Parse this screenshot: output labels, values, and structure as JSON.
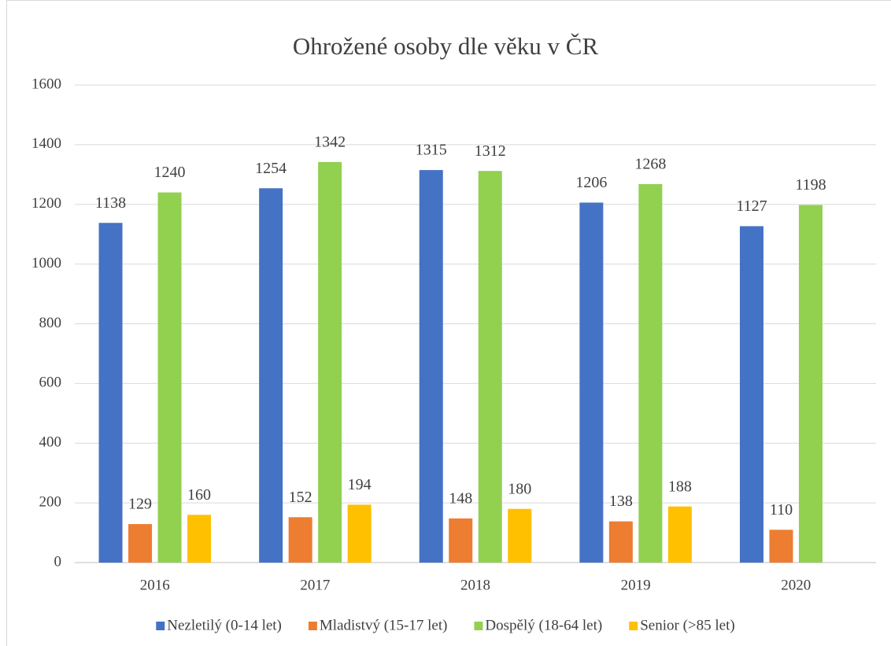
{
  "chart_data": {
    "type": "bar",
    "title": "Ohrožené osoby dle věku v ČR",
    "categories": [
      "2016",
      "2017",
      "2018",
      "2019",
      "2020"
    ],
    "series": [
      {
        "name": "Nezletilý (0-14 let)",
        "color": "#4472c4",
        "values": [
          1138,
          1254,
          1315,
          1206,
          1127
        ]
      },
      {
        "name": "Mladistvý (15-17 let)",
        "color": "#ed7d31",
        "values": [
          129,
          152,
          148,
          138,
          110
        ]
      },
      {
        "name": "Dospělý (18-64 let)",
        "color": "#92d050",
        "values": [
          1240,
          1342,
          1312,
          1268,
          1198
        ]
      },
      {
        "name": "Senior (>85 let)",
        "color": "#ffc000",
        "values": [
          160,
          194,
          180,
          188,
          null
        ]
      }
    ],
    "ylim": [
      0,
      1600
    ],
    "yticks": [
      0,
      200,
      400,
      600,
      800,
      1000,
      1200,
      1400,
      1600
    ],
    "grid": true,
    "legend": "bottom",
    "data_labels": true
  }
}
